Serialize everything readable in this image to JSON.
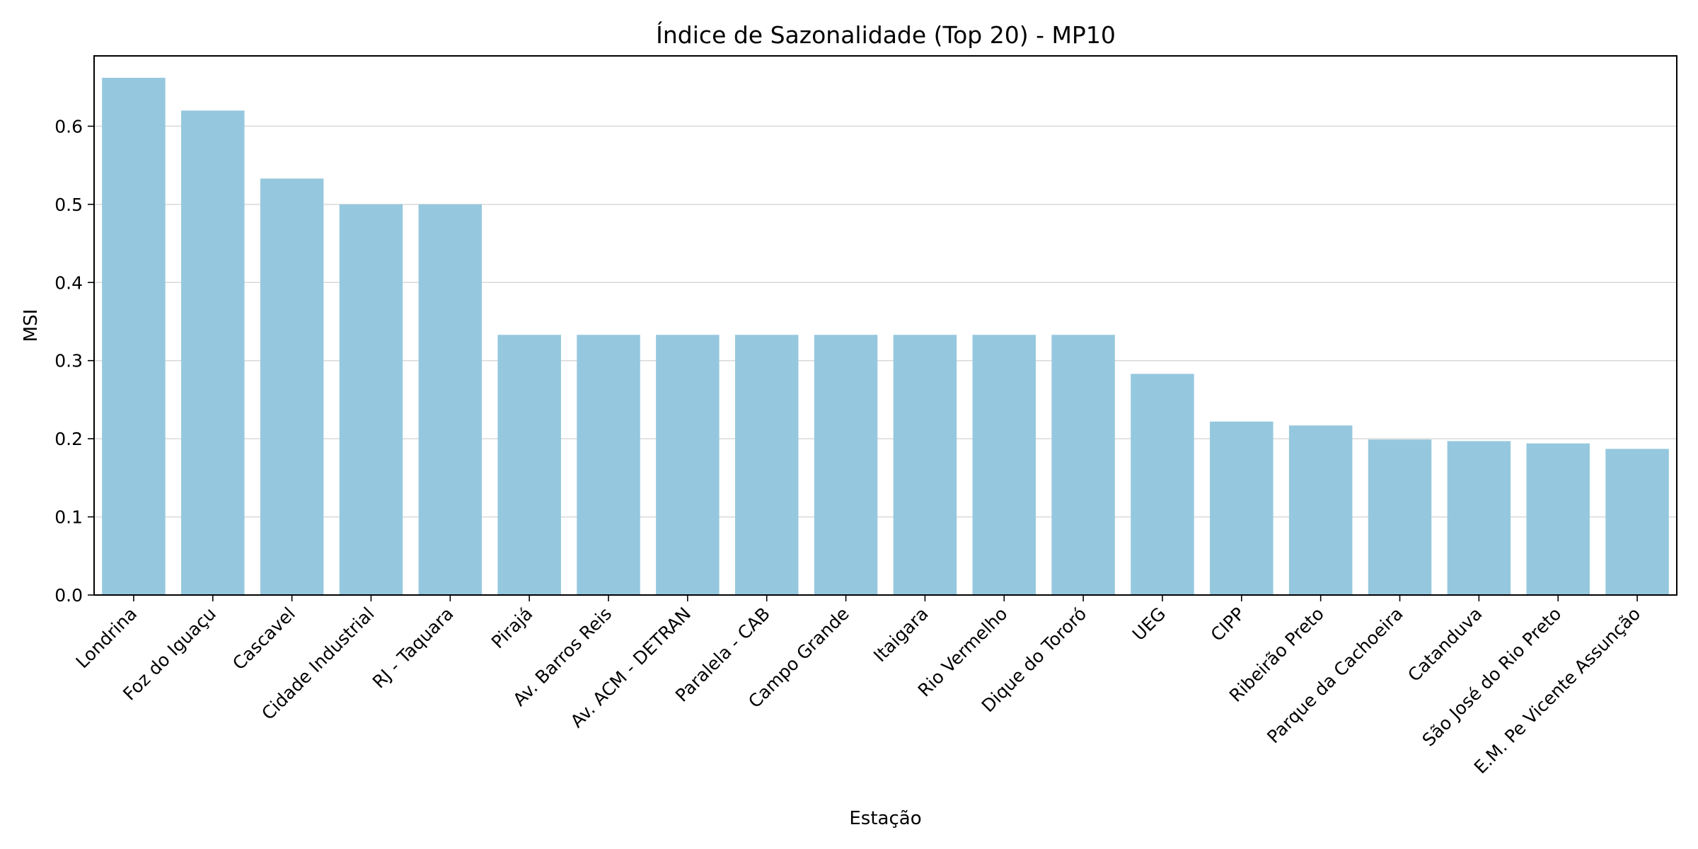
{
  "chart_data": {
    "type": "bar",
    "title": "Índice de Sazonalidade (Top 20) - MP10",
    "xlabel": "Estação",
    "ylabel": "MSI",
    "ylim": [
      0,
      0.69
    ],
    "yticks": [
      0.0,
      0.1,
      0.2,
      0.3,
      0.4,
      0.5,
      0.6
    ],
    "ytick_labels": [
      "0.0",
      "0.1",
      "0.2",
      "0.3",
      "0.4",
      "0.5",
      "0.6"
    ],
    "grid": "y",
    "bar_color": "#95c8de",
    "categories": [
      "Londrina",
      "Foz do Iguaçu",
      "Cascavel",
      "Cidade Industrial",
      "RJ - Taquara",
      "Pirajá",
      "Av. Barros Reis",
      "Av. ACM - DETRAN",
      "Paralela - CAB",
      "Campo Grande",
      "Itaigara",
      "Rio Vermelho",
      "Dique do Tororó",
      "UEG",
      "CIPP",
      "Ribeirão Preto",
      "Parque da Cachoeira",
      "Catanduva",
      "São José do Rio Preto",
      "E.M. Pe Vicente Assunção"
    ],
    "values": [
      0.662,
      0.62,
      0.533,
      0.5,
      0.5,
      0.333,
      0.333,
      0.333,
      0.333,
      0.333,
      0.333,
      0.333,
      0.333,
      0.283,
      0.222,
      0.217,
      0.199,
      0.197,
      0.194,
      0.187
    ]
  }
}
